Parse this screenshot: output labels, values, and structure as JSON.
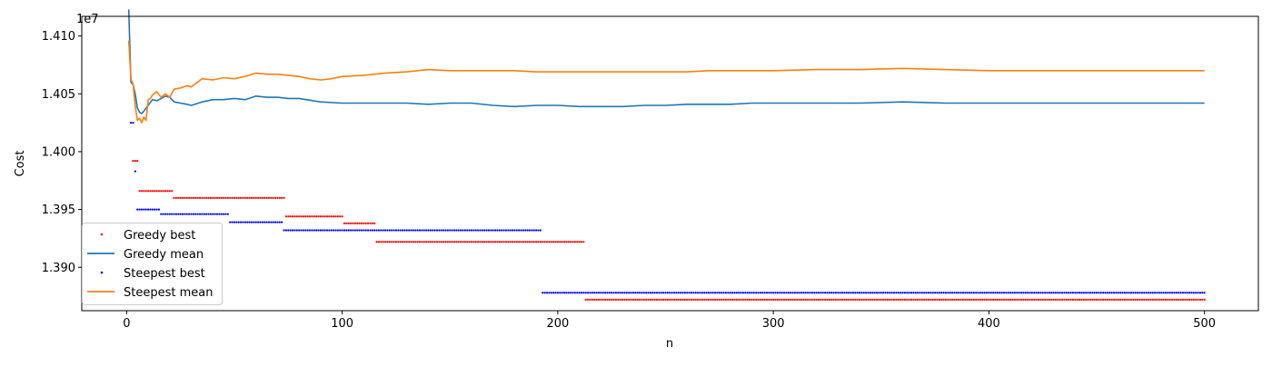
{
  "chart_data": {
    "type": "scatter",
    "xlabel": "n",
    "ylabel": "Cost",
    "y_offset_label": "1e7",
    "x_ticks": [
      0,
      100,
      200,
      300,
      400,
      500
    ],
    "x_tick_labels": [
      "0",
      "100",
      "200",
      "300",
      "400",
      "500"
    ],
    "y_ticks": [
      13900000,
      13950000,
      14000000,
      14050000,
      14100000
    ],
    "y_tick_labels": [
      "1.390",
      "1.395",
      "1.400",
      "1.405",
      "1.410"
    ],
    "xlim": [
      -20.8,
      525
    ],
    "ylim": [
      13862500,
      14117000
    ],
    "grid": false,
    "legend_position": "lower-left",
    "series": [
      {
        "name": "Greedy best",
        "kind": "points",
        "color": "#ff0000",
        "steps": [
          {
            "from": 3,
            "to": 5,
            "y": 13992000
          },
          {
            "from": 6,
            "to": 21,
            "y": 13966000
          },
          {
            "from": 22,
            "to": 73,
            "y": 13960000
          },
          {
            "from": 74,
            "to": 100,
            "y": 13944000
          },
          {
            "from": 101,
            "to": 115,
            "y": 13938000
          },
          {
            "from": 116,
            "to": 212,
            "y": 13922000
          },
          {
            "from": 213,
            "to": 500,
            "y": 13872000
          }
        ]
      },
      {
        "name": "Greedy mean",
        "kind": "line",
        "color": "#1f77b4",
        "x": [
          1,
          2,
          3,
          4,
          5,
          6,
          7,
          8,
          10,
          12,
          14,
          16,
          18,
          20,
          22,
          25,
          28,
          30,
          35,
          40,
          45,
          50,
          55,
          60,
          65,
          70,
          75,
          80,
          90,
          100,
          110,
          120,
          130,
          140,
          150,
          160,
          170,
          180,
          190,
          200,
          210,
          220,
          230,
          240,
          250,
          260,
          270,
          280,
          290,
          300,
          320,
          340,
          360,
          380,
          400,
          420,
          440,
          460,
          480,
          500
        ],
        "y": [
          14123000,
          14060000,
          14058000,
          14050000,
          14038000,
          14034000,
          14033000,
          14035000,
          14040000,
          14045000,
          14044000,
          14046000,
          14048000,
          14047000,
          14043000,
          14042000,
          14041000,
          14040000,
          14043000,
          14045000,
          14045000,
          14046000,
          14045000,
          14048000,
          14047000,
          14047000,
          14046000,
          14046000,
          14043000,
          14042000,
          14042000,
          14042000,
          14042000,
          14041000,
          14042000,
          14042000,
          14040000,
          14039000,
          14040000,
          14040000,
          14039000,
          14039000,
          14039000,
          14040000,
          14040000,
          14041000,
          14041000,
          14041000,
          14042000,
          14042000,
          14042000,
          14042000,
          14043000,
          14042000,
          14042000,
          14042000,
          14042000,
          14042000,
          14042000,
          14042000
        ]
      },
      {
        "name": "Steepest best",
        "kind": "points",
        "color": "#0000ff",
        "steps": [
          {
            "from": 2,
            "to": 3,
            "y": 14025000
          },
          {
            "from": 4,
            "to": 4,
            "y": 13983000
          },
          {
            "from": 5,
            "to": 15,
            "y": 13950000
          },
          {
            "from": 16,
            "to": 47,
            "y": 13946000
          },
          {
            "from": 48,
            "to": 72,
            "y": 13939000
          },
          {
            "from": 73,
            "to": 192,
            "y": 13932000
          },
          {
            "from": 193,
            "to": 500,
            "y": 13878000
          }
        ]
      },
      {
        "name": "Steepest mean",
        "kind": "line",
        "color": "#ff7f0e",
        "x": [
          1,
          2,
          3,
          4,
          5,
          6,
          7,
          8,
          9,
          10,
          11,
          12,
          14,
          16,
          18,
          20,
          22,
          25,
          28,
          30,
          35,
          40,
          45,
          50,
          55,
          60,
          65,
          70,
          75,
          80,
          85,
          90,
          95,
          100,
          110,
          120,
          130,
          140,
          150,
          160,
          170,
          180,
          190,
          200,
          210,
          220,
          230,
          240,
          250,
          260,
          270,
          280,
          290,
          300,
          320,
          340,
          360,
          380,
          400,
          420,
          440,
          460,
          480,
          500
        ],
        "y": [
          14096000,
          14063000,
          14058000,
          14040000,
          14027000,
          14029000,
          14025000,
          14030000,
          14027000,
          14045000,
          14046000,
          14049000,
          14052000,
          14047000,
          14050000,
          14047000,
          14054000,
          14055000,
          14057000,
          14056000,
          14063000,
          14062000,
          14064000,
          14063000,
          14065000,
          14068000,
          14067000,
          14067000,
          14066000,
          14065000,
          14063000,
          14062000,
          14063000,
          14065000,
          14066000,
          14068000,
          14069000,
          14071000,
          14070000,
          14070000,
          14070000,
          14070000,
          14069000,
          14069000,
          14069000,
          14069000,
          14069000,
          14069000,
          14069000,
          14069000,
          14070000,
          14070000,
          14070000,
          14070000,
          14071000,
          14071000,
          14072000,
          14071000,
          14070000,
          14070000,
          14070000,
          14070000,
          14070000,
          14070000
        ]
      }
    ]
  }
}
